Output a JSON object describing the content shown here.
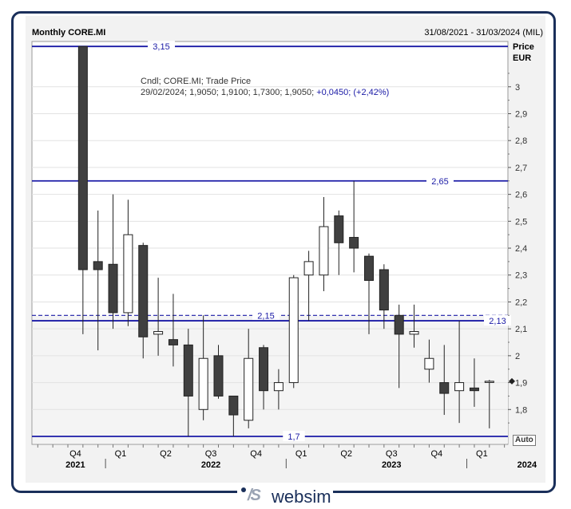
{
  "header": {
    "title": "Monthly CORE.MI",
    "range": "31/08/2021 - 31/03/2024 (MIL)"
  },
  "axis": {
    "price_label": "Price",
    "currency_label": "EUR",
    "auto_label": "Auto"
  },
  "info": {
    "line1": "Cndl; CORE.MI; Trade Price",
    "line2_prefix": "29/02/2024; 1,9050; 1,9100; 1,7300; 1,9050;",
    "line2_change": "+0,0450; (+2,42%)"
  },
  "logo": {
    "mark": "/S",
    "text": "websim"
  },
  "chart_data": {
    "type": "candlestick",
    "title": "Monthly CORE.MI",
    "ylim": [
      1.7,
      3.15
    ],
    "y_ticks": [
      {
        "value": 1.8,
        "label": "1,8"
      },
      {
        "value": 1.9,
        "label": "1,9"
      },
      {
        "value": 2.0,
        "label": "2"
      },
      {
        "value": 2.1,
        "label": "2,1"
      },
      {
        "value": 2.2,
        "label": "2,2"
      },
      {
        "value": 2.3,
        "label": "2,3"
      },
      {
        "value": 2.4,
        "label": "2,4"
      },
      {
        "value": 2.5,
        "label": "2,5"
      },
      {
        "value": 2.6,
        "label": "2,6"
      },
      {
        "value": 2.7,
        "label": "2,7"
      },
      {
        "value": 2.8,
        "label": "2,8"
      },
      {
        "value": 2.9,
        "label": "2,9"
      },
      {
        "value": 3.0,
        "label": "3"
      }
    ],
    "x_quarter_labels": [
      {
        "index": 2.5,
        "label": "Q4"
      },
      {
        "index": 5.5,
        "label": "Q1"
      },
      {
        "index": 8.5,
        "label": "Q2"
      },
      {
        "index": 11.5,
        "label": "Q3"
      },
      {
        "index": 14.5,
        "label": "Q4"
      },
      {
        "index": 17.5,
        "label": "Q1"
      },
      {
        "index": 20.5,
        "label": "Q2"
      },
      {
        "index": 23.5,
        "label": "Q3"
      },
      {
        "index": 26.5,
        "label": "Q4"
      },
      {
        "index": 29.5,
        "label": "Q1"
      }
    ],
    "x_year_labels": [
      {
        "index": 2.5,
        "label": "2021"
      },
      {
        "index": 11.5,
        "label": "2022"
      },
      {
        "index": 23.5,
        "label": "2023"
      },
      {
        "index": 32.5,
        "label": "2024"
      }
    ],
    "year_separators": [
      4.5,
      16.5,
      28.5
    ],
    "candles": [
      {
        "date": "2021-09",
        "index": 3,
        "open": 3.15,
        "high": 3.15,
        "low": 2.08,
        "close": 2.32
      },
      {
        "date": "2021-10",
        "index": 4,
        "open": 2.35,
        "high": 2.54,
        "low": 2.02,
        "close": 2.32
      },
      {
        "date": "2021-11",
        "index": 5,
        "open": 2.34,
        "high": 2.6,
        "low": 2.1,
        "close": 2.16
      },
      {
        "date": "2021-12",
        "index": 6,
        "open": 2.16,
        "high": 2.58,
        "low": 2.11,
        "close": 2.45
      },
      {
        "date": "2022-01",
        "index": 7,
        "open": 2.41,
        "high": 2.42,
        "low": 1.99,
        "close": 2.07
      },
      {
        "date": "2022-02",
        "index": 8,
        "open": 2.08,
        "high": 2.29,
        "low": 2.0,
        "close": 2.09
      },
      {
        "date": "2022-03",
        "index": 9,
        "open": 2.06,
        "high": 2.23,
        "low": 1.96,
        "close": 2.04
      },
      {
        "date": "2022-04",
        "index": 10,
        "open": 2.04,
        "high": 2.1,
        "low": 1.7,
        "close": 1.85
      },
      {
        "date": "2022-05",
        "index": 11,
        "open": 1.8,
        "high": 2.15,
        "low": 1.76,
        "close": 1.99
      },
      {
        "date": "2022-06",
        "index": 12,
        "open": 2.0,
        "high": 2.04,
        "low": 1.84,
        "close": 1.85
      },
      {
        "date": "2022-07",
        "index": 13,
        "open": 1.85,
        "high": 1.85,
        "low": 1.7,
        "close": 1.78
      },
      {
        "date": "2022-08",
        "index": 14,
        "open": 1.76,
        "high": 2.1,
        "low": 1.73,
        "close": 1.99
      },
      {
        "date": "2022-09",
        "index": 15,
        "open": 2.03,
        "high": 2.04,
        "low": 1.8,
        "close": 1.87
      },
      {
        "date": "2022-10",
        "index": 16,
        "open": 1.87,
        "high": 1.95,
        "low": 1.8,
        "close": 1.9
      },
      {
        "date": "2022-11",
        "index": 17,
        "open": 1.9,
        "high": 2.3,
        "low": 1.88,
        "close": 2.29
      },
      {
        "date": "2022-12",
        "index": 18,
        "open": 2.3,
        "high": 2.39,
        "low": 2.13,
        "close": 2.35
      },
      {
        "date": "2023-01",
        "index": 19,
        "open": 2.3,
        "high": 2.59,
        "low": 2.24,
        "close": 2.48
      },
      {
        "date": "2023-02",
        "index": 20,
        "open": 2.52,
        "high": 2.54,
        "low": 2.3,
        "close": 2.42
      },
      {
        "date": "2023-03",
        "index": 21,
        "open": 2.44,
        "high": 2.65,
        "low": 2.31,
        "close": 2.4
      },
      {
        "date": "2023-04",
        "index": 22,
        "open": 2.37,
        "high": 2.38,
        "low": 2.08,
        "close": 2.28
      },
      {
        "date": "2023-05",
        "index": 23,
        "open": 2.32,
        "high": 2.34,
        "low": 2.1,
        "close": 2.17
      },
      {
        "date": "2023-06",
        "index": 24,
        "open": 2.15,
        "high": 2.19,
        "low": 1.88,
        "close": 2.08
      },
      {
        "date": "2023-07",
        "index": 25,
        "open": 2.08,
        "high": 2.19,
        "low": 2.03,
        "close": 2.09
      },
      {
        "date": "2023-08",
        "index": 26,
        "open": 1.95,
        "high": 2.06,
        "low": 1.9,
        "close": 1.99
      },
      {
        "date": "2023-09",
        "index": 27,
        "open": 1.9,
        "high": 2.04,
        "low": 1.78,
        "close": 1.86
      },
      {
        "date": "2023-10",
        "index": 28,
        "open": 1.87,
        "high": 2.13,
        "low": 1.75,
        "close": 1.9
      },
      {
        "date": "2023-11",
        "index": 29,
        "open": 1.88,
        "high": 1.99,
        "low": 1.81,
        "close": 1.87
      },
      {
        "date": "2024-02",
        "index": 30,
        "open": 1.905,
        "high": 1.91,
        "low": 1.73,
        "close": 1.905
      }
    ],
    "horizontal_lines": [
      {
        "value": 3.15,
        "label": "3,15",
        "style": "solid",
        "label_side": "left"
      },
      {
        "value": 2.65,
        "label": "2,65",
        "style": "solid",
        "label_side": "right"
      },
      {
        "value": 2.15,
        "label": "2,15",
        "style": "dashed",
        "label_side": "left"
      },
      {
        "value": 2.13,
        "label": "2,13",
        "style": "solid",
        "label_side": "axis"
      },
      {
        "value": 1.7,
        "label": "1,7",
        "style": "solid",
        "label_side": "left"
      }
    ],
    "last_price_marker": 1.905,
    "colors": {
      "candle_down": "#404040",
      "candle_up": "#ffffff",
      "outline": "#222222",
      "level_line": "#1a1aa6",
      "frame": "#1a2f5a"
    }
  }
}
